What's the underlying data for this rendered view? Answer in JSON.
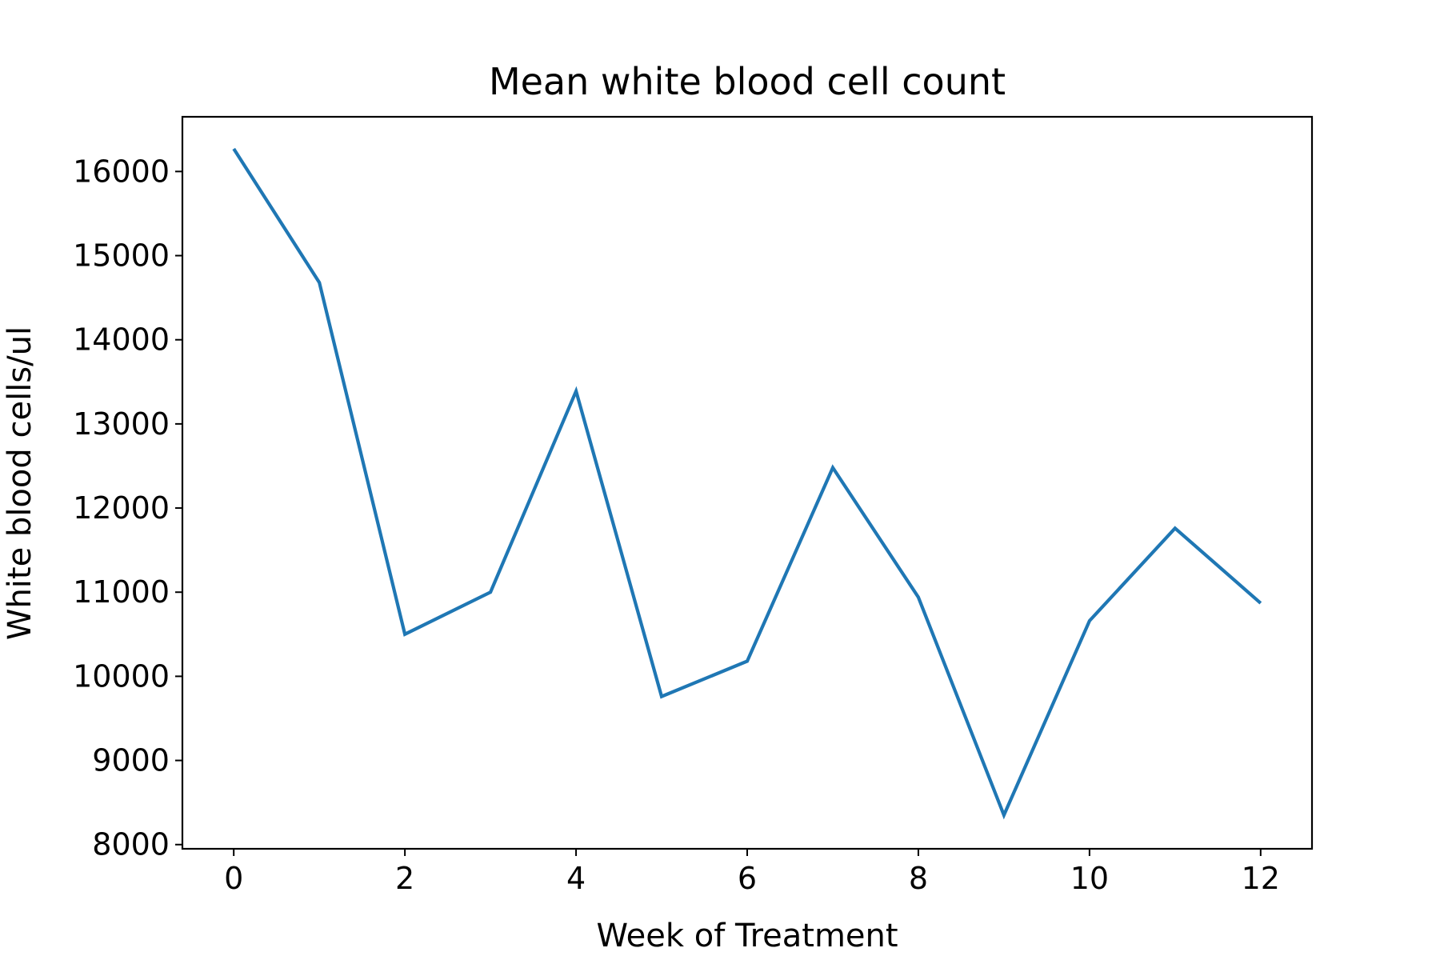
{
  "chart_data": {
    "type": "line",
    "title": "Mean white blood cell count",
    "xlabel": "Week of Treatment",
    "ylabel": "White blood cells/ul",
    "xlim": [
      -0.6,
      12.6
    ],
    "ylim": [
      7950,
      16650
    ],
    "xticks": [
      0,
      2,
      4,
      6,
      8,
      10,
      12
    ],
    "yticks": [
      8000,
      9000,
      10000,
      11000,
      12000,
      13000,
      14000,
      15000,
      16000
    ],
    "grid": false,
    "legend": "none",
    "series": [
      {
        "color": "#1f77b4",
        "x": [
          0,
          1,
          2,
          3,
          4,
          5,
          6,
          7,
          8,
          9,
          10,
          11,
          12
        ],
        "y": [
          16270,
          14680,
          10500,
          11000,
          13390,
          9760,
          10180,
          12480,
          10940,
          8350,
          10660,
          11760,
          10870
        ]
      }
    ]
  }
}
